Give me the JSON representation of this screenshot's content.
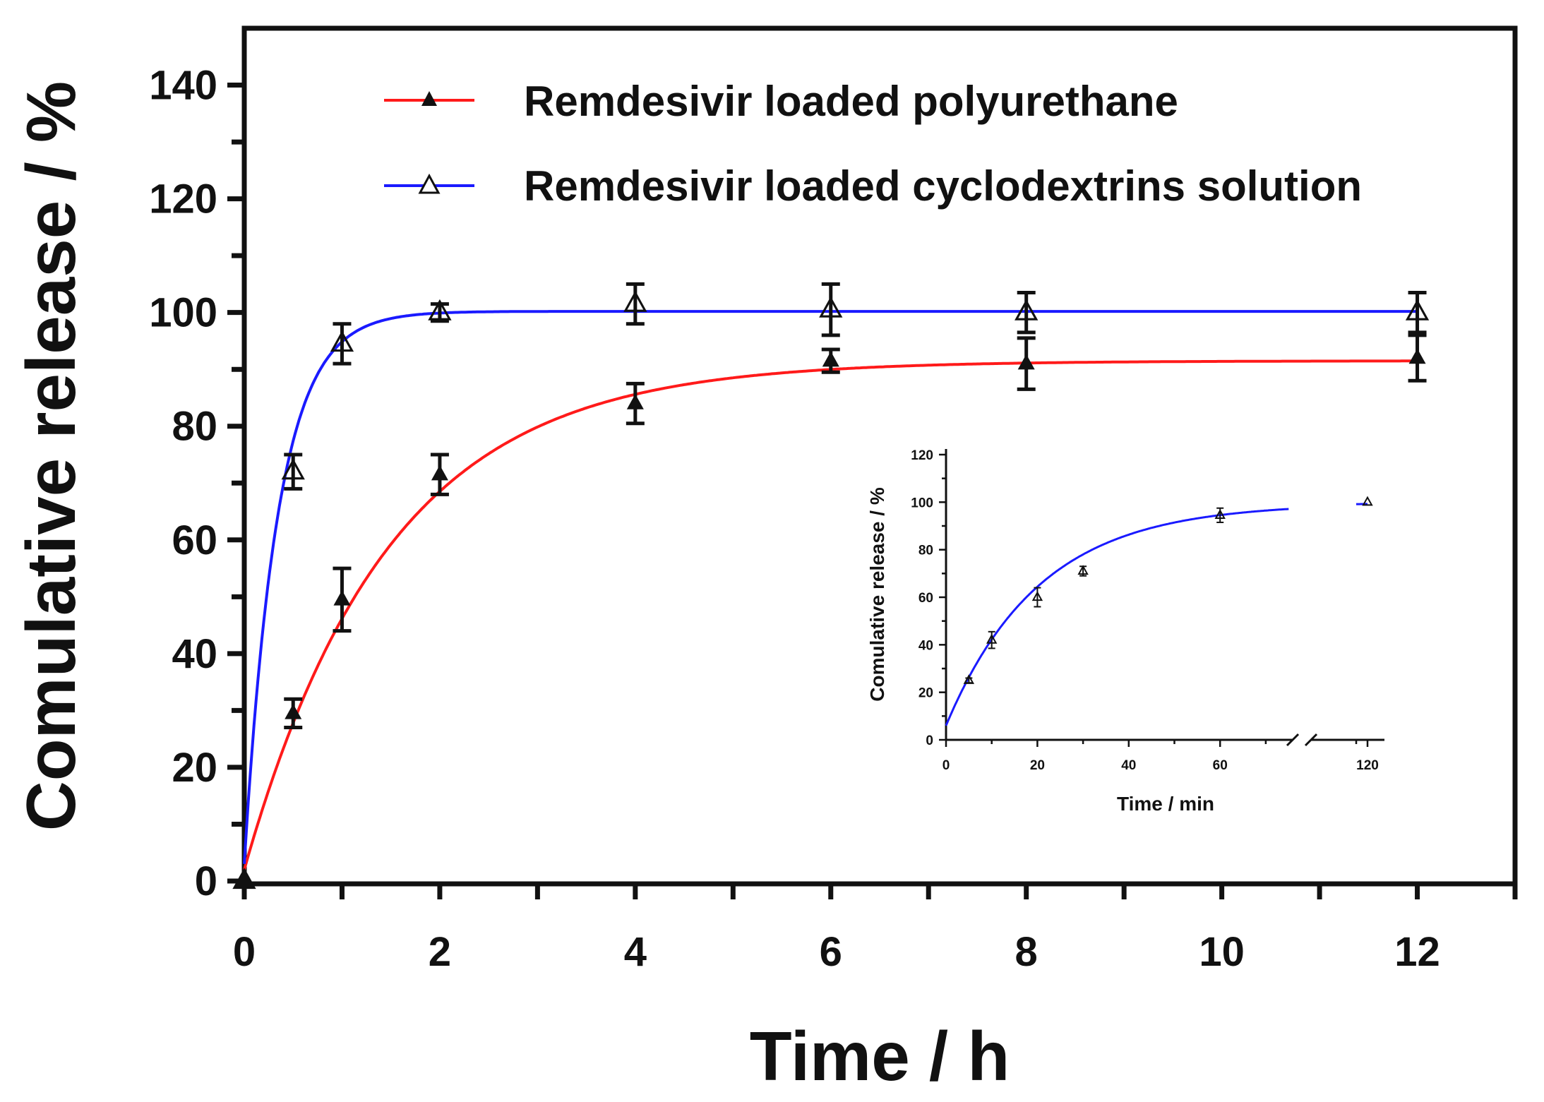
{
  "chart_data": [
    {
      "type": "line",
      "xlabel": "Time / h",
      "ylabel": "Comulative release / %",
      "xlim": [
        0,
        13
      ],
      "ylim": [
        0,
        150
      ],
      "xticks": [
        0,
        2,
        4,
        6,
        8,
        10,
        12
      ],
      "yticks": [
        0,
        20,
        40,
        60,
        80,
        100,
        120,
        140
      ],
      "grid": false,
      "legend_position": "top-center",
      "series": [
        {
          "name": "Remdesivir loaded polyurethane",
          "color": "#ff1a1a",
          "marker": "filled-triangle",
          "points": [
            {
              "x": 0,
              "y": 0,
              "err": 0
            },
            {
              "x": 0.5,
              "y": 29.5,
              "err": 2.5
            },
            {
              "x": 1,
              "y": 49.5,
              "err": 5.5
            },
            {
              "x": 2,
              "y": 71.5,
              "err": 3.5
            },
            {
              "x": 4,
              "y": 84,
              "err": 3.5
            },
            {
              "x": 6,
              "y": 91.5,
              "err": 2
            },
            {
              "x": 8,
              "y": 91,
              "err": 4.5
            },
            {
              "x": 12,
              "y": 92,
              "err": 4
            }
          ],
          "fit": {
            "model": "first-order",
            "plateau": 91.5,
            "k": 0.68,
            "y0": 2
          }
        },
        {
          "name": "Remdesivir loaded cyclodextrins solution",
          "color": "#1a1aff",
          "marker": "open-triangle",
          "points": [
            {
              "x": 0,
              "y": 0,
              "err": 0
            },
            {
              "x": 0.5,
              "y": 72,
              "err": 3
            },
            {
              "x": 1,
              "y": 94.5,
              "err": 3.5
            },
            {
              "x": 2,
              "y": 100,
              "err": 1.5
            },
            {
              "x": 4,
              "y": 101.5,
              "err": 3.5
            },
            {
              "x": 6,
              "y": 100.5,
              "err": 4.5
            },
            {
              "x": 8,
              "y": 100,
              "err": 3.5
            },
            {
              "x": 12,
              "y": 100,
              "err": 3.5
            }
          ],
          "fit": {
            "model": "first-order",
            "plateau": 100.2,
            "k": 2.9,
            "y0": 3
          }
        }
      ]
    },
    {
      "type": "line",
      "xlabel": "Time / min",
      "ylabel": "Comulative release / %",
      "xlim": [
        0,
        120
      ],
      "ylim": [
        0,
        120
      ],
      "xticks": [
        0,
        20,
        40,
        60,
        120
      ],
      "yticks": [
        0,
        20,
        40,
        60,
        80,
        100,
        120
      ],
      "axis_break": [
        75,
        115
      ],
      "grid": false,
      "series": [
        {
          "color": "#1a1aff",
          "marker": "open-triangle",
          "points": [
            {
              "x": 5,
              "y": 25,
              "err": 1
            },
            {
              "x": 10,
              "y": 42,
              "err": 3.5
            },
            {
              "x": 20,
              "y": 60,
              "err": 4
            },
            {
              "x": 30,
              "y": 71,
              "err": 2
            },
            {
              "x": 60,
              "y": 94.5,
              "err": 3
            },
            {
              "x": 120,
              "y": 100,
              "err": 0
            }
          ],
          "fit": {
            "model": "first-order",
            "plateau": 99.5,
            "k": 0.049,
            "y0": 6
          }
        }
      ]
    }
  ]
}
